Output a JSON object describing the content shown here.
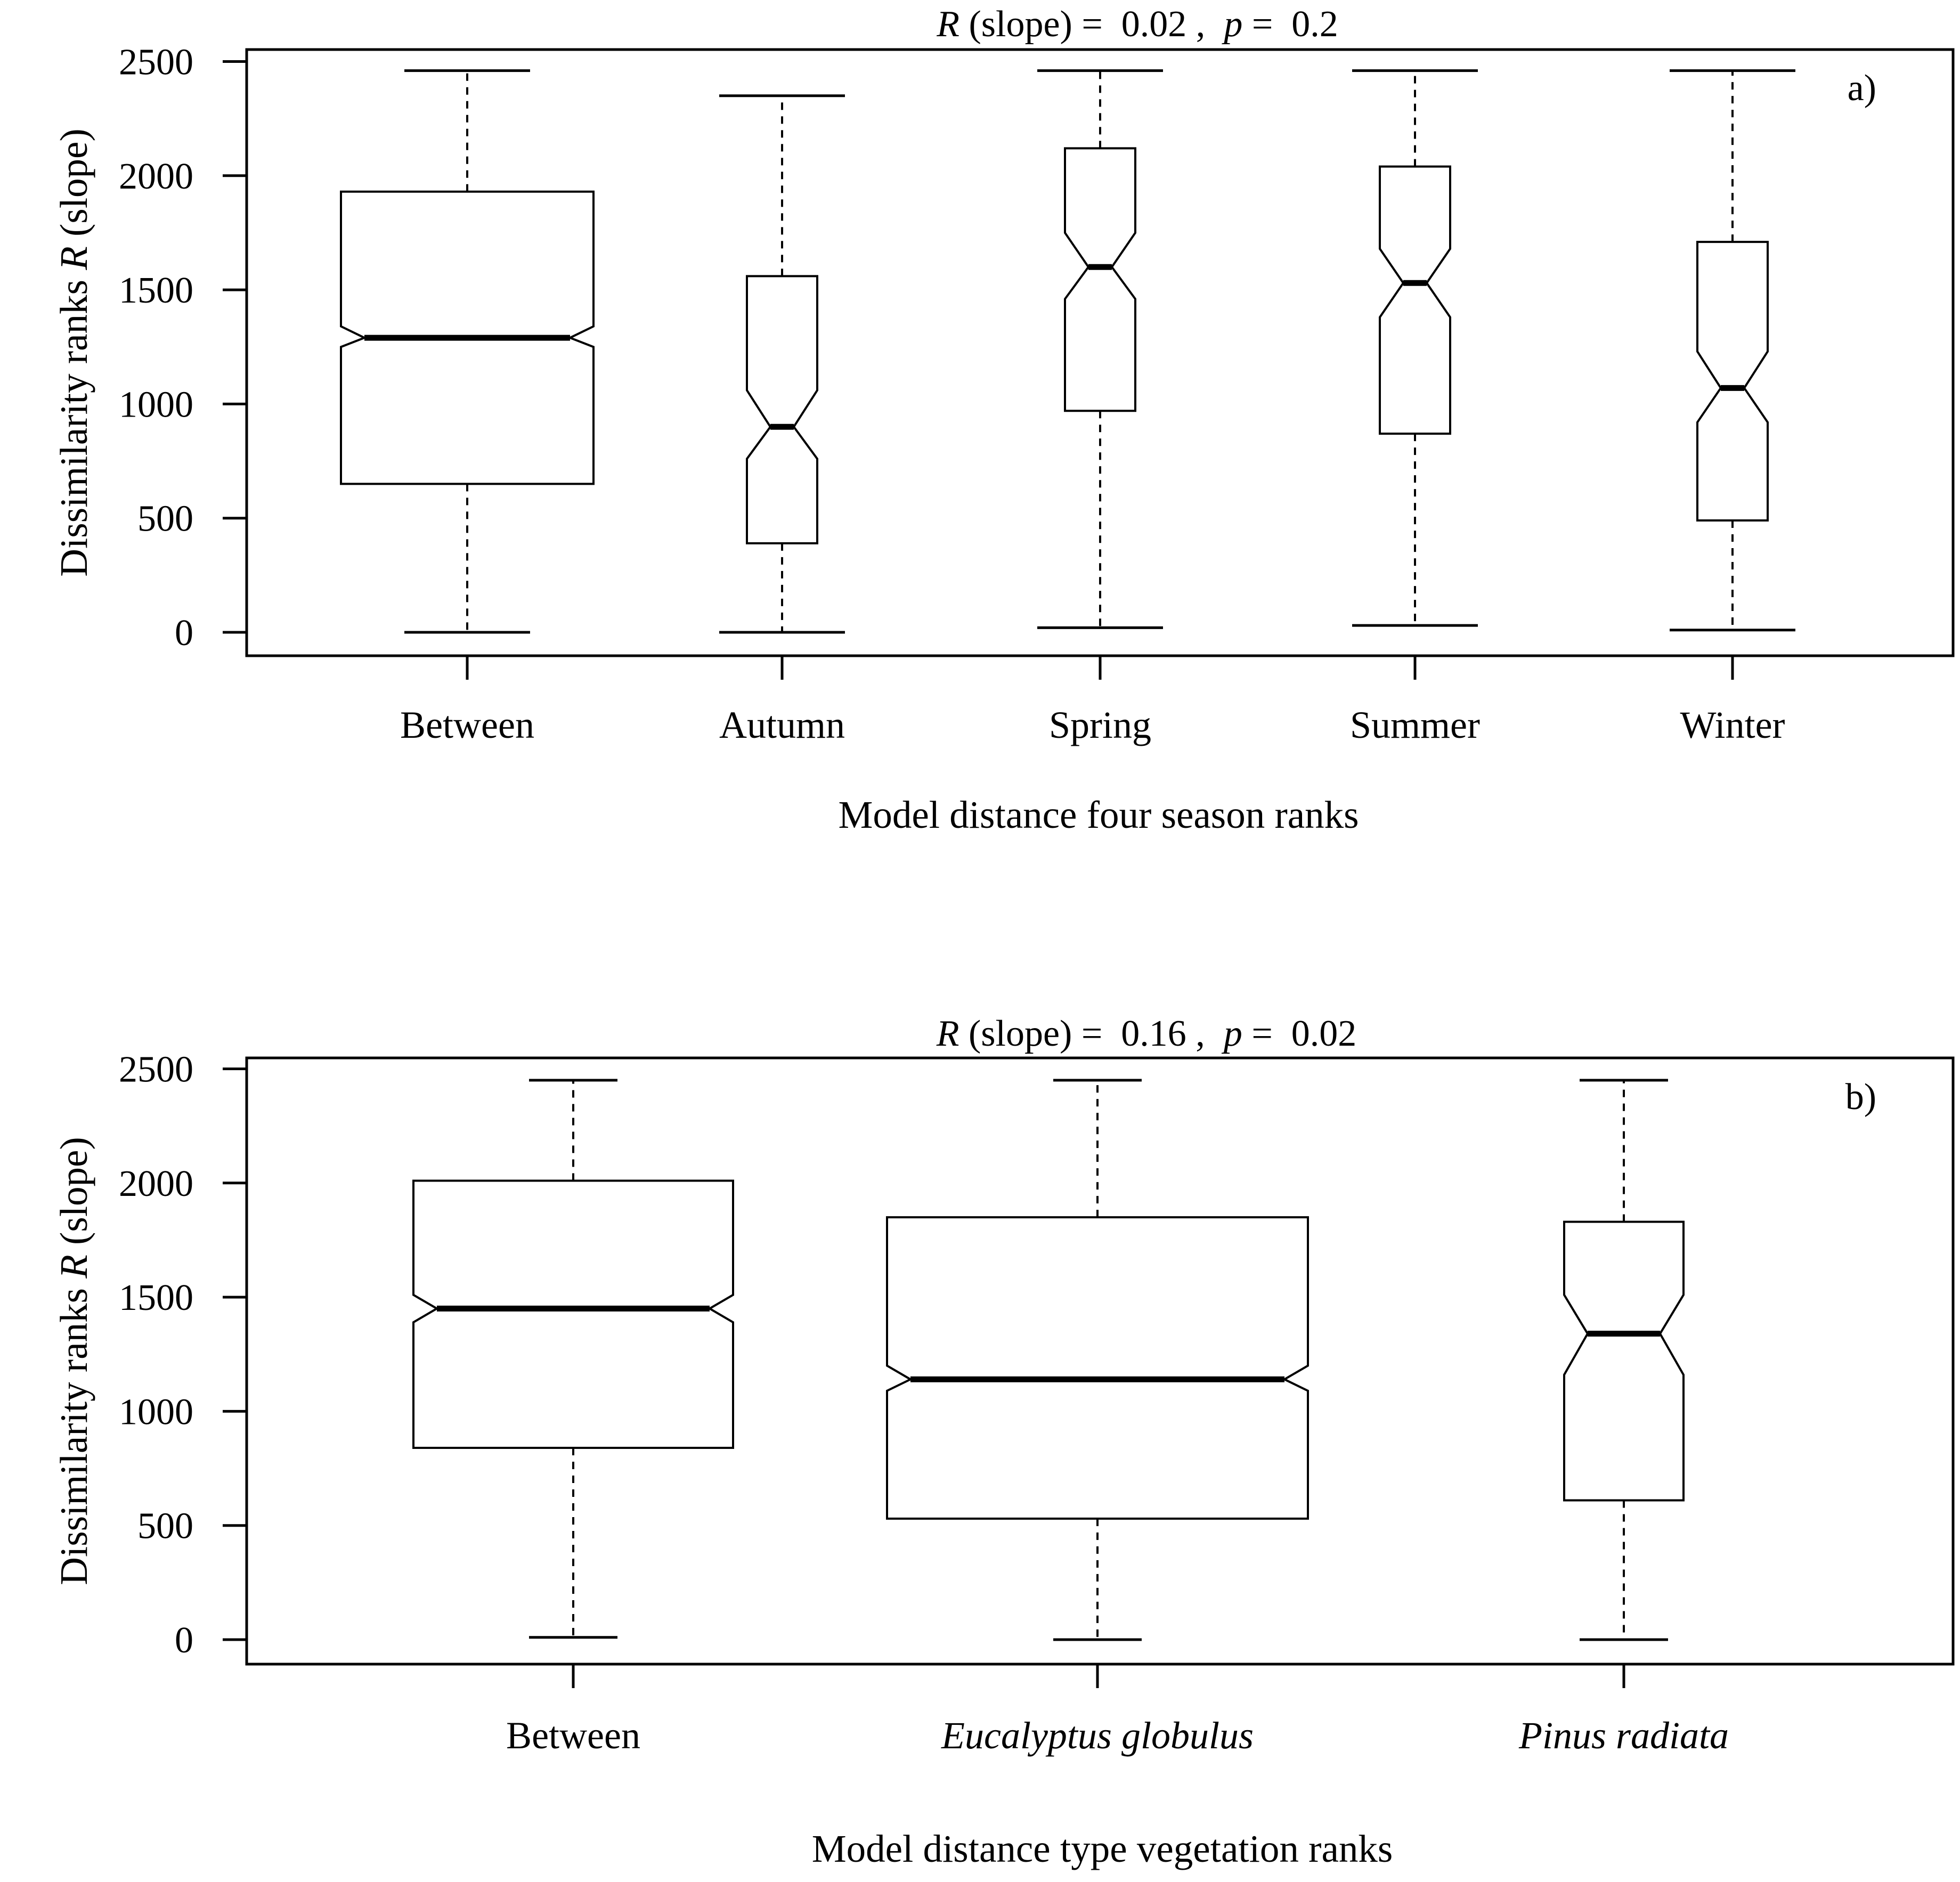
{
  "chart_data": [
    {
      "type": "boxplot",
      "notched": true,
      "panel_label": "a)",
      "stat": {
        "r_symbol": "R",
        "r_suffix": " (slope) =  0.02 ,  ",
        "p_symbol": "p",
        "p_suffix": " =  0.2"
      },
      "xlabel": "Model distance four season ranks",
      "ylabel": {
        "prefix": "Dissimilarity ranks ",
        "italic": "R",
        "suffix": " (slope)"
      },
      "ylim": [
        -100,
        2550
      ],
      "yticks": [
        0,
        500,
        1000,
        1500,
        2000,
        2500
      ],
      "categories": [
        "Between",
        "Autumn",
        "Spring",
        "Summer",
        "Winter"
      ],
      "italic_categories": [
        false,
        false,
        false,
        false,
        false
      ],
      "boxes": [
        {
          "whisker_low": 0,
          "q1": 650,
          "notch_low": 1250,
          "median": 1290,
          "notch_high": 1340,
          "q3": 1930,
          "whisker_high": 2460
        },
        {
          "whisker_low": 0,
          "q1": 390,
          "notch_low": 760,
          "median": 900,
          "notch_high": 1060,
          "q3": 1560,
          "whisker_high": 2350
        },
        {
          "whisker_low": 20,
          "q1": 970,
          "notch_low": 1460,
          "median": 1600,
          "notch_high": 1750,
          "q3": 2120,
          "whisker_high": 2460
        },
        {
          "whisker_low": 30,
          "q1": 870,
          "notch_low": 1380,
          "median": 1530,
          "notch_high": 1680,
          "q3": 2040,
          "whisker_high": 2460
        },
        {
          "whisker_low": 10,
          "q1": 490,
          "notch_low": 920,
          "median": 1070,
          "notch_high": 1230,
          "q3": 1710,
          "whisker_high": 2460
        }
      ]
    },
    {
      "type": "boxplot",
      "notched": true,
      "panel_label": "b)",
      "stat": {
        "r_symbol": "R",
        "r_suffix": " (slope) =  0.16 ,  ",
        "p_symbol": "p",
        "p_suffix": " =  0.02"
      },
      "xlabel": "Model distance type vegetation ranks",
      "ylabel": {
        "prefix": "Dissimilarity ranks ",
        "italic": "R",
        "suffix": " (slope)"
      },
      "ylim": [
        -100,
        2550
      ],
      "yticks": [
        0,
        500,
        1000,
        1500,
        2000,
        2500
      ],
      "categories": [
        "Between",
        "Eucalyptus globulus",
        "Pinus radiata"
      ],
      "italic_categories": [
        false,
        true,
        true
      ],
      "boxes": [
        {
          "whisker_low": 10,
          "q1": 840,
          "notch_low": 1390,
          "median": 1450,
          "notch_high": 1510,
          "q3": 2010,
          "whisker_high": 2450
        },
        {
          "whisker_low": 0,
          "q1": 530,
          "notch_low": 1090,
          "median": 1140,
          "notch_high": 1200,
          "q3": 1850,
          "whisker_high": 2450
        },
        {
          "whisker_low": 0,
          "q1": 610,
          "notch_low": 1160,
          "median": 1340,
          "notch_high": 1510,
          "q3": 1830,
          "whisker_high": 2450
        }
      ]
    }
  ]
}
